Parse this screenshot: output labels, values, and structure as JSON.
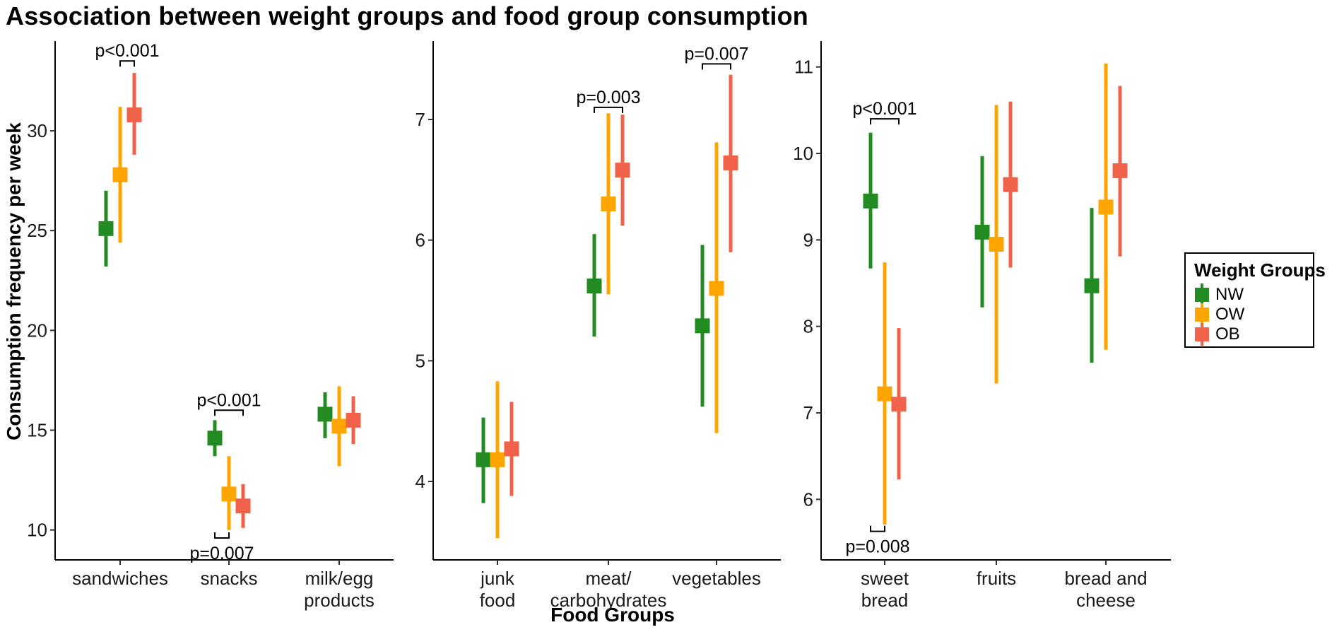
{
  "chart_data": {
    "type": "dot-errorbar",
    "title": "Association between weight groups and food group consumption",
    "ylabel": "Consumption frequency per week",
    "xlabel": "Food Groups",
    "legend": {
      "title": "Weight Groups",
      "position": "right",
      "items": [
        {
          "name": "NW",
          "color": "#228B22"
        },
        {
          "name": "OW",
          "color": "#FFA500"
        },
        {
          "name": "OB",
          "color": "#F0634A"
        }
      ]
    },
    "panels": [
      {
        "name": "panel-1",
        "ylim": [
          8.5,
          34.5
        ],
        "yticks": [
          10,
          15,
          20,
          25,
          30
        ],
        "ytick_labels": [
          "10",
          "15",
          "20",
          "25",
          "30"
        ],
        "categories": [
          {
            "label": [
              "sandwiches"
            ],
            "NW": {
              "mean": 25.1,
              "lo": 23.2,
              "hi": 27.0
            },
            "OW": {
              "mean": 27.8,
              "lo": 24.4,
              "hi": 31.2
            },
            "OB": {
              "mean": 30.8,
              "lo": 28.8,
              "hi": 32.9
            }
          },
          {
            "label": [
              "snacks"
            ],
            "NW": {
              "mean": 14.6,
              "lo": 13.7,
              "hi": 15.5
            },
            "OW": {
              "mean": 11.8,
              "lo": 10.0,
              "hi": 13.7
            },
            "OB": {
              "mean": 11.2,
              "lo": 10.1,
              "hi": 12.3
            }
          },
          {
            "label": [
              "milk/egg",
              "products"
            ],
            "NW": {
              "mean": 15.8,
              "lo": 14.6,
              "hi": 16.9
            },
            "OW": {
              "mean": 15.2,
              "lo": 13.2,
              "hi": 17.2
            },
            "OB": {
              "mean": 15.5,
              "lo": 14.3,
              "hi": 16.7
            }
          }
        ],
        "annotations": [
          {
            "text": "p<0.001",
            "category": 0,
            "from": "OW",
            "to": "OB",
            "side": "top",
            "y": 33.5
          },
          {
            "text": "p<0.001",
            "category": 1,
            "from": "NW",
            "to": "OB",
            "side": "top",
            "y": 16.0
          },
          {
            "text": "p=0.007",
            "category": 1,
            "from": "NW",
            "to": "OW",
            "side": "bottom",
            "y": 9.6
          }
        ]
      },
      {
        "name": "panel-2",
        "ylim": [
          3.35,
          7.65
        ],
        "yticks": [
          4,
          5,
          6,
          7
        ],
        "ytick_labels": [
          "4",
          "5",
          "6",
          "7"
        ],
        "categories": [
          {
            "label": [
              "junk",
              "food"
            ],
            "NW": {
              "mean": 4.18,
              "lo": 3.82,
              "hi": 4.53
            },
            "OW": {
              "mean": 4.18,
              "lo": 3.53,
              "hi": 4.83
            },
            "OB": {
              "mean": 4.27,
              "lo": 3.88,
              "hi": 4.66
            }
          },
          {
            "label": [
              "meat/",
              "carbohydrates"
            ],
            "NW": {
              "mean": 5.62,
              "lo": 5.2,
              "hi": 6.05
            },
            "OW": {
              "mean": 6.3,
              "lo": 5.55,
              "hi": 7.05
            },
            "OB": {
              "mean": 6.58,
              "lo": 6.12,
              "hi": 7.04
            }
          },
          {
            "label": [
              "vegetables"
            ],
            "NW": {
              "mean": 5.29,
              "lo": 4.62,
              "hi": 5.96
            },
            "OW": {
              "mean": 5.6,
              "lo": 4.4,
              "hi": 6.81
            },
            "OB": {
              "mean": 6.64,
              "lo": 5.9,
              "hi": 7.37
            }
          }
        ],
        "annotations": [
          {
            "text": "p=0.003",
            "category": 1,
            "from": "NW",
            "to": "OB",
            "side": "top",
            "y": 7.1
          },
          {
            "text": "p=0.007",
            "category": 2,
            "from": "NW",
            "to": "OB",
            "side": "top",
            "y": 7.46
          }
        ]
      },
      {
        "name": "panel-3",
        "ylim": [
          5.3,
          11.3
        ],
        "yticks": [
          6,
          7,
          8,
          9,
          10,
          11
        ],
        "ytick_labels": [
          "6",
          "7",
          "8",
          "9",
          "10",
          "11"
        ],
        "categories": [
          {
            "label": [
              "sweet",
              "bread"
            ],
            "NW": {
              "mean": 9.45,
              "lo": 8.67,
              "hi": 10.24
            },
            "OW": {
              "mean": 7.22,
              "lo": 5.71,
              "hi": 8.74
            },
            "OB": {
              "mean": 7.1,
              "lo": 6.23,
              "hi": 7.98
            }
          },
          {
            "label": [
              "fruits"
            ],
            "NW": {
              "mean": 9.09,
              "lo": 8.22,
              "hi": 9.97
            },
            "OW": {
              "mean": 8.95,
              "lo": 7.34,
              "hi": 10.56
            },
            "OB": {
              "mean": 9.64,
              "lo": 8.68,
              "hi": 10.6
            }
          },
          {
            "label": [
              "bread and",
              "cheese"
            ],
            "NW": {
              "mean": 8.47,
              "lo": 7.58,
              "hi": 9.37
            },
            "OW": {
              "mean": 9.38,
              "lo": 7.73,
              "hi": 11.04
            },
            "OB": {
              "mean": 9.8,
              "lo": 8.81,
              "hi": 10.78
            }
          }
        ],
        "annotations": [
          {
            "text": "p<0.001",
            "category": 0,
            "from": "NW",
            "to": "OB",
            "side": "top",
            "y": 10.4
          },
          {
            "text": "p=0.008",
            "category": 0,
            "from": "NW",
            "to": "OW",
            "side": "bottom",
            "y": 5.63
          }
        ]
      }
    ]
  }
}
